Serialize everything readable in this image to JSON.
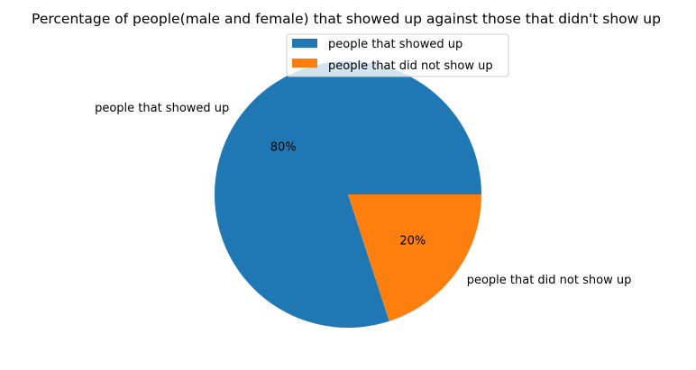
{
  "chart_data": {
    "type": "pie",
    "title": "Percentage of people(male and female) that showed up against those that didn't show up",
    "categories": [
      "people that showed up",
      "people that did not show up"
    ],
    "values": [
      80,
      20
    ],
    "labels_pct": [
      "80%",
      "20%"
    ],
    "colors": [
      "#1f77b4",
      "#ff7f0e"
    ],
    "start_angle_deg": 0,
    "direction": "counterclockwise",
    "legend": {
      "position": "upper-right",
      "entries": [
        "people that showed up",
        "people that did not show up"
      ]
    }
  }
}
